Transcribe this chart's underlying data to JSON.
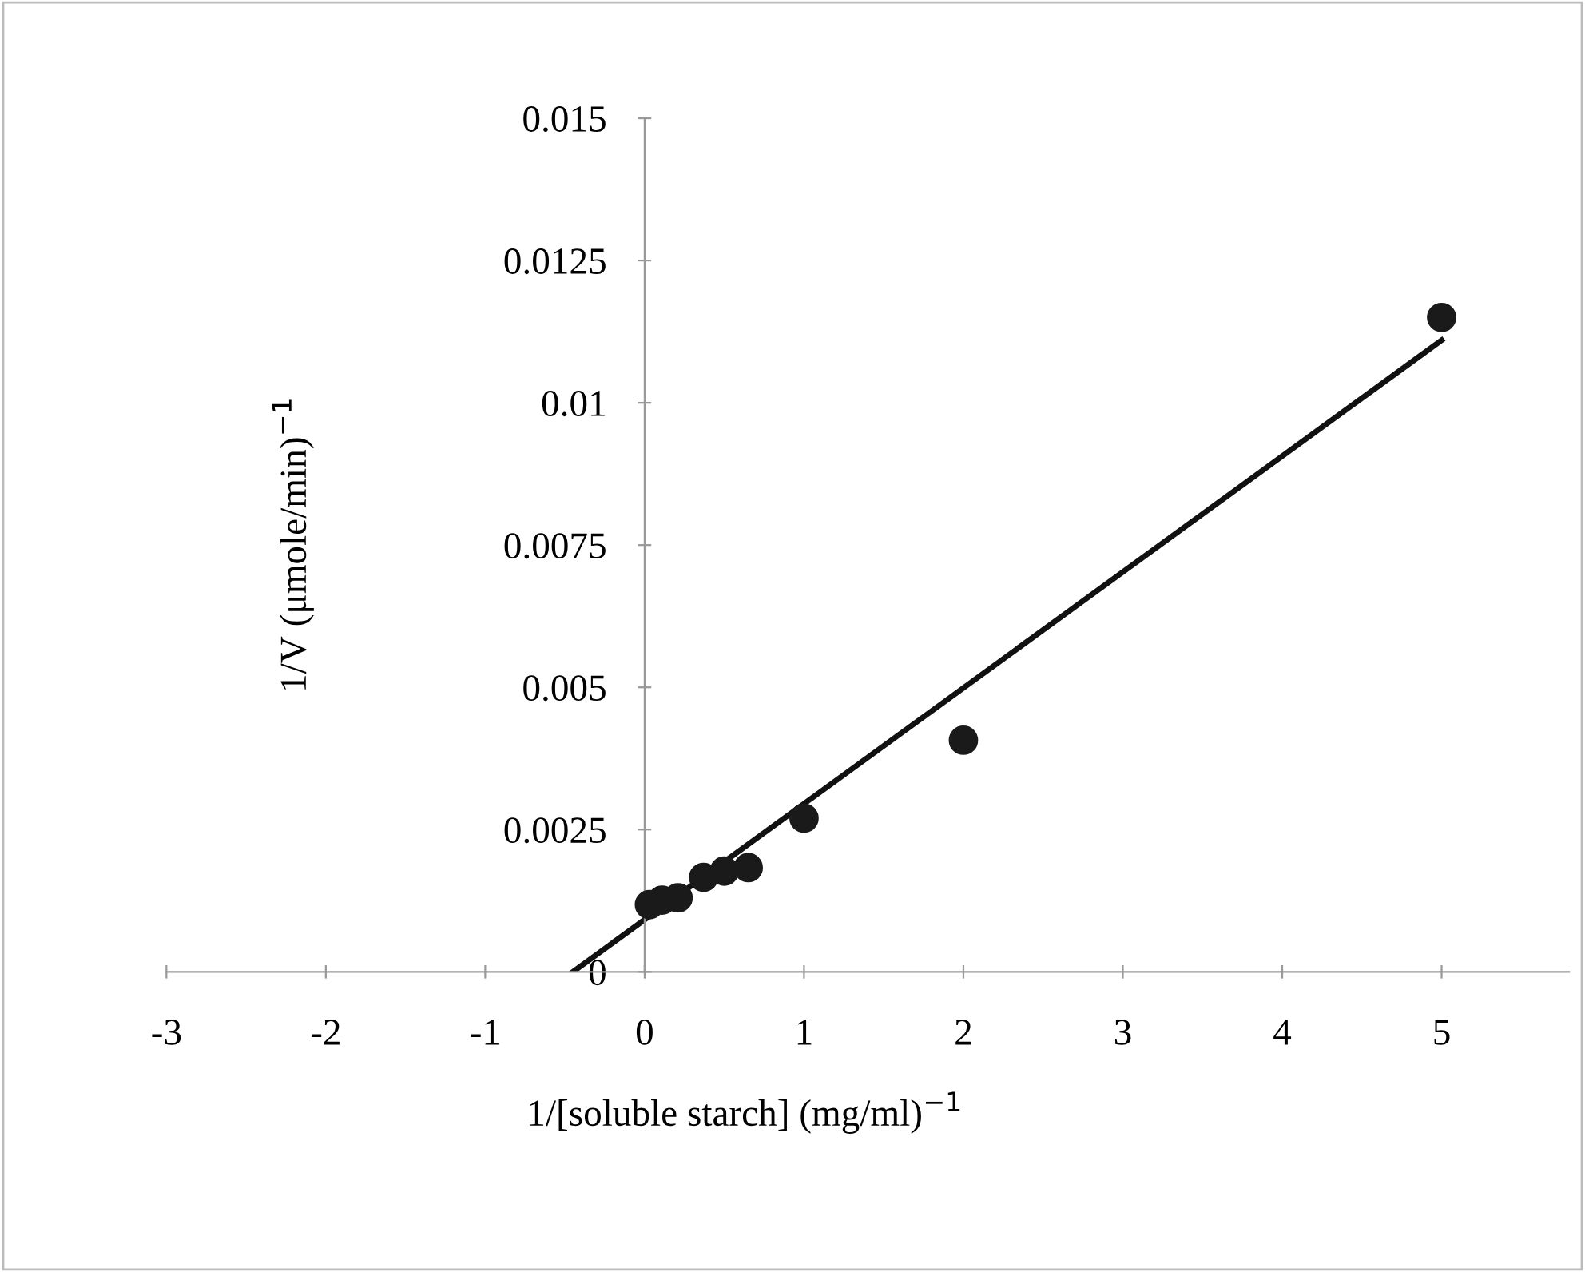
{
  "chart_data": {
    "type": "scatter",
    "xlabel": "1/[soluble starch] (mg/ml)$^{−1}$",
    "ylabel": "1/V (μmole/min)$^{−1}$",
    "xlim": [
      -3,
      5.8
    ],
    "xticks": [
      -3,
      -2,
      -1,
      0,
      1,
      2,
      3,
      4,
      5
    ],
    "ylim": [
      0,
      0.015
    ],
    "yticks": [
      0,
      0.0025,
      0.005,
      0.0075,
      0.01,
      0.0125,
      0.015
    ],
    "grid": false,
    "legend": false,
    "series": [
      {
        "marker": "circle",
        "color": "#1a1a1a",
        "x": [
          0.03,
          0.11,
          0.21,
          0.37,
          0.5,
          0.65,
          1,
          2,
          5
        ],
        "values": [
          0.00118,
          0.00126,
          0.0013,
          0.00166,
          0.00177,
          0.00183,
          0.0027,
          0.00407,
          0.0115
        ]
      },
      {
        "type": "line",
        "marker": "none",
        "line_style": "solid",
        "color": "#111111",
        "x": [
          -0.45,
          5
        ],
        "values": [
          0,
          0.0111
        ]
      }
    ]
  }
}
